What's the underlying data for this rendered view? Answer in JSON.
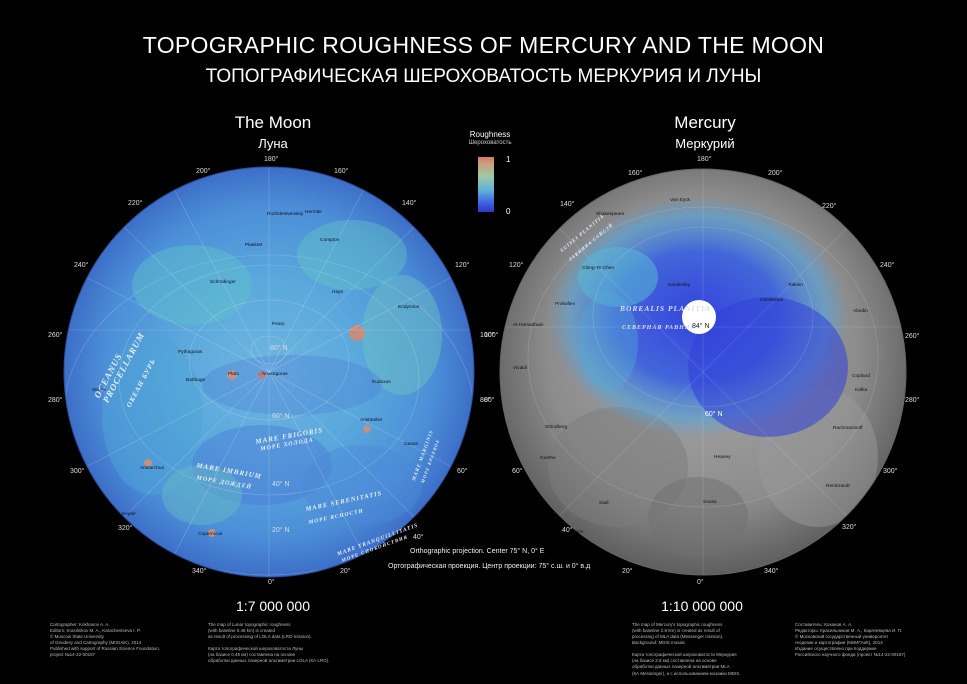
{
  "title": "TOPOGRAPHIC ROUGHNESS OF MERCURY AND THE MOON",
  "subtitle": "ТОПОГРАФИЧЕСКАЯ ШЕРОХОВАТОСТЬ МЕРКУРИЯ И ЛУНЫ",
  "moon": {
    "name_en": "The Moon",
    "name_ru": "Луна",
    "scale": "1:7 000 000",
    "longitudes": [
      "180°",
      "160°",
      "140°",
      "120°",
      "100°",
      "80°",
      "60°",
      "40°",
      "20°",
      "0°",
      "340°",
      "320°",
      "300°",
      "280°",
      "260°",
      "240°",
      "220°",
      "200°"
    ],
    "latitudes": [
      "80° N",
      "60° N",
      "40° N",
      "20° N"
    ],
    "regions": {
      "oceanus_en": "OCEANUS PROCELLARUM",
      "oceanus_ru": "ОКЕАН БУРЬ",
      "frigoris_en": "MARE FRIGORIS",
      "frigoris_ru": "МОРЕ ХОЛОДА",
      "imbrium_en": "MARE IMBRIUM",
      "imbrium_ru": "МОРЕ ДОЖДЕЙ",
      "serenitatis_en": "MARE SERENITATIS",
      "serenitatis_ru": "МОРЕ ЯСНОСТИ",
      "tranquillitatis_en": "MARE TRANQUILLITATIS",
      "tranquillitatis_ru": "МОРЕ СПОКОЙСТВИЯ",
      "marginis_en": "MARE MARGINIS",
      "marginis_ru": "МОРЕ КРАЕВОЕ"
    },
    "craters": [
      "Rozhdestvenskiy",
      "Hermite",
      "Plaskett",
      "Peary",
      "Pythagoras",
      "Anaxagoras",
      "Aristoteles",
      "Eudoxus",
      "Plato",
      "Copernicus",
      "Aristarchus",
      "Kepler",
      "Struve",
      "Compton",
      "Schrödinger",
      "Hayn",
      "Endymion",
      "Gauss",
      "Babbage"
    ],
    "credits_left": "Cartographer: Kokhanov A. A.\nEditors: Krasilnikov M. A., Karachevtseva I. P.\n© Moscow State University\nof Geodesy and Cartography (MIIGAiK), 2014\nPublished with support of Russian Science Foundation,\nproject №14-22-00197",
    "credits_right": "The map of Lunar topographic roughness\n(with baseline 0.48 km) is created\nas result of processing of LOLA data (LRO mission).\n\nКарта топографической шероховатости Луны\n(на базисе 0.48 км) составлена на основе\nобработки данных лазерной альтиметрии LOLA (КА LRO)."
  },
  "mercury": {
    "name_en": "Mercury",
    "name_ru": "Меркурий",
    "scale": "1:10 000 000",
    "longitudes": [
      "180°",
      "200°",
      "220°",
      "240°",
      "260°",
      "280°",
      "300°",
      "320°",
      "340°",
      "0°",
      "20°",
      "40°",
      "60°",
      "80°",
      "100°",
      "120°",
      "140°",
      "160°"
    ],
    "latitudes": [
      "84° N",
      "60° N"
    ],
    "regions": {
      "borealis_en": "BOREALIS PLANITIA",
      "borealis_ru": "СЕВЕРНАЯ РАВНИНА",
      "suisei_en": "SUISEI PLANITIA",
      "suisei_ru": "РАВНИНА СУЙСЭЙ"
    },
    "craters": [
      "Van Eyck",
      "Shakespeare",
      "Ching-Te Chen",
      "Prokofiev",
      "Kandinsky",
      "Tolkien",
      "Chesterton",
      "Abedin",
      "Al-Hamadhani",
      "Vivaldi",
      "Strindberg",
      "Goethe",
      "Heaney",
      "Rachmaninoff",
      "Copland",
      "Sadi",
      "Sousa",
      "Rembrandt",
      "Wren",
      "Kafka"
    ],
    "credits_left": "The map of Mercury's topographic roughness\n(with baseline 2.8 km) is created as result of\nprocessing of MLA data (Messenger mission).\nBackground: MDIS mosaic\n\nКарта топографической шероховатости Меркурия\n(на базисе 2.8 км) составлена на основе\nобработки данных лазерной альтиметрии MLA\n(КА Messenger), и с использованием мозаики MDIS.",
    "credits_right": "Составитель: Коханов А. А.\nРедакторы: Красильников М. А., Карачевцева И. П.\n© Московский государственный университет\nгеодезии и картографии (МИИГАиК), 2014\nИздание осуществлено при поддержке\nРоссийского научного фонда (проект №14-22-00197)"
  },
  "legend": {
    "title_en": "Roughness",
    "title_ru": "Шероховатость",
    "max": "1",
    "min": "0",
    "colors": [
      "#d9776a",
      "#c9a07a",
      "#9ec9a6",
      "#5fb3d9",
      "#3c5ee0",
      "#2c39c8"
    ]
  },
  "projection": {
    "en": "Orthographic projection. Center 75° N, 0° E",
    "ru": "Ортографическая проекция. Центр проекции: 75° с.ш. и 0° в.д"
  }
}
